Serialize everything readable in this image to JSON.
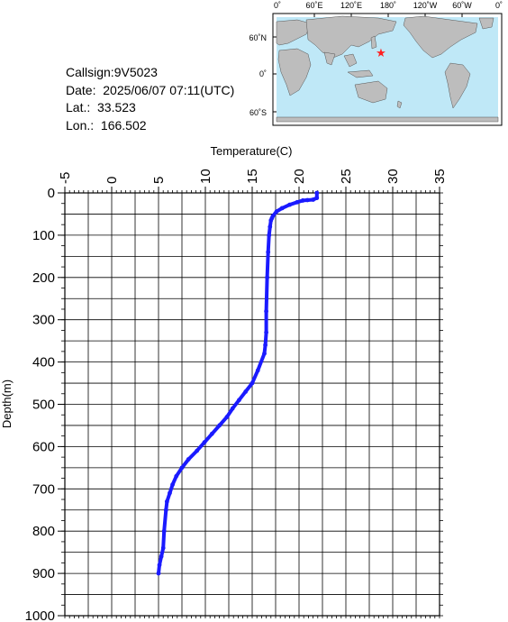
{
  "info": {
    "callsign": "Callsign:9V5023",
    "date": "Date:  2025/06/07 07:11(UTC)",
    "lat": "Lat.:  33.523",
    "lon": "Lon.:  166.502"
  },
  "map": {
    "top_labels": [
      "0˚",
      "60˚E",
      "120˚E",
      "180˚",
      "120˚W",
      "60˚W",
      "0˚"
    ],
    "lat_labels": [
      "60˚N",
      "0˚",
      "60˚S"
    ],
    "ocean_color": "#bfe8f7",
    "land_color": "#bdbdbd",
    "marker_color": "#ff2020",
    "marker_icon": "red-star-icon"
  },
  "chart_data": {
    "type": "line",
    "xlabel": "Temperature(C)",
    "ylabel": "Depth(m)",
    "xlim": [
      -5,
      35
    ],
    "ylim": [
      0,
      1000
    ],
    "y_inverted": true,
    "x_axis_position": "top",
    "x_major_ticks": [
      -5,
      0,
      5,
      10,
      15,
      20,
      25,
      30,
      35
    ],
    "x_tick_labels": [
      "-5",
      "0",
      "5",
      "10",
      "15",
      "20",
      "25",
      "30",
      "35"
    ],
    "y_major_ticks": [
      0,
      100,
      200,
      300,
      400,
      500,
      600,
      700,
      800,
      900,
      1000
    ],
    "y_tick_labels": [
      "0",
      "100",
      "200",
      "300",
      "400",
      "500",
      "600",
      "700",
      "800",
      "900",
      "1000"
    ],
    "grid": true,
    "line_color": "#1a1aff",
    "series": [
      {
        "x": [
          21.9,
          21.9,
          21.5,
          20.9,
          20.4,
          19.8,
          19.0,
          18.2,
          17.6,
          17.2,
          17.1,
          17.0,
          16.9,
          16.8,
          16.7,
          16.6,
          16.5,
          16.5,
          16.4,
          16.3,
          15.6,
          15.0,
          14.3,
          13.6,
          12.9,
          12.3,
          11.5,
          10.7,
          9.9,
          9.1,
          8.2,
          7.5,
          6.9,
          6.5,
          6.2,
          5.9,
          5.8,
          5.6,
          5.5,
          5.3,
          5.1,
          5.0
        ],
        "y": [
          0,
          12,
          16,
          17,
          18,
          22,
          28,
          36,
          44,
          55,
          60,
          65,
          80,
          100,
          140,
          200,
          280,
          330,
          360,
          380,
          420,
          450,
          470,
          490,
          510,
          530,
          550,
          570,
          590,
          610,
          630,
          650,
          670,
          690,
          710,
          730,
          750,
          800,
          840,
          860,
          880,
          900
        ]
      }
    ]
  }
}
